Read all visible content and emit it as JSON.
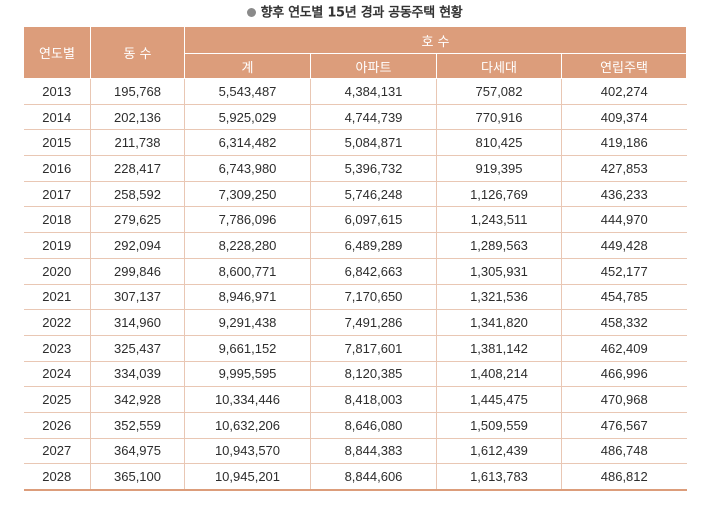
{
  "title": "향후 연도별 15년 경과 공동주택 현황",
  "headers": {
    "year": "연도별",
    "buildings": "동 수",
    "units": "호 수",
    "total": "계",
    "apartment": "아파트",
    "multiplex": "다세대",
    "rowhouse": "연립주택"
  },
  "rows": [
    [
      "2013",
      "195,768",
      "5,543,487",
      "4,384,131",
      "757,082",
      "402,274"
    ],
    [
      "2014",
      "202,136",
      "5,925,029",
      "4,744,739",
      "770,916",
      "409,374"
    ],
    [
      "2015",
      "211,738",
      "6,314,482",
      "5,084,871",
      "810,425",
      "419,186"
    ],
    [
      "2016",
      "228,417",
      "6,743,980",
      "5,396,732",
      "919,395",
      "427,853"
    ],
    [
      "2017",
      "258,592",
      "7,309,250",
      "5,746,248",
      "1,126,769",
      "436,233"
    ],
    [
      "2018",
      "279,625",
      "7,786,096",
      "6,097,615",
      "1,243,511",
      "444,970"
    ],
    [
      "2019",
      "292,094",
      "8,228,280",
      "6,489,289",
      "1,289,563",
      "449,428"
    ],
    [
      "2020",
      "299,846",
      "8,600,771",
      "6,842,663",
      "1,305,931",
      "452,177"
    ],
    [
      "2021",
      "307,137",
      "8,946,971",
      "7,170,650",
      "1,321,536",
      "454,785"
    ],
    [
      "2022",
      "314,960",
      "9,291,438",
      "7,491,286",
      "1,341,820",
      "458,332"
    ],
    [
      "2023",
      "325,437",
      "9,661,152",
      "7,817,601",
      "1,381,142",
      "462,409"
    ],
    [
      "2024",
      "334,039",
      "9,995,595",
      "8,120,385",
      "1,408,214",
      "466,996"
    ],
    [
      "2025",
      "342,928",
      "10,334,446",
      "8,418,003",
      "1,445,475",
      "470,968"
    ],
    [
      "2026",
      "352,559",
      "10,632,206",
      "8,646,080",
      "1,509,559",
      "476,567"
    ],
    [
      "2027",
      "364,975",
      "10,943,570",
      "8,844,383",
      "1,612,439",
      "486,748"
    ],
    [
      "2028",
      "365,100",
      "10,945,201",
      "8,844,606",
      "1,613,783",
      "486,812"
    ]
  ],
  "colors": {
    "header_bg": "#dc9d7b",
    "row_border": "#e9c7b4",
    "bullet": "#8a8a8a"
  }
}
